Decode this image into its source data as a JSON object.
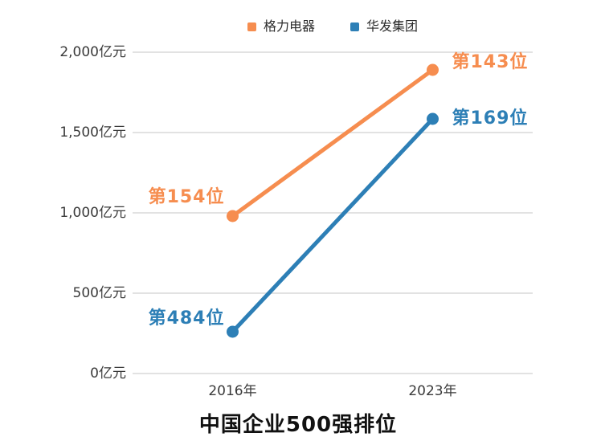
{
  "chart_data": {
    "type": "line",
    "categories": [
      "2016年",
      "2023年"
    ],
    "series": [
      {
        "name": "格力电器",
        "color": "#F68D4F",
        "values": [
          980,
          1890
        ],
        "point_labels": [
          "第154位",
          "第143位"
        ]
      },
      {
        "name": "华发集团",
        "color": "#2D7FB6",
        "values": [
          260,
          1585
        ],
        "point_labels": [
          "第484位",
          "第169位"
        ]
      }
    ],
    "title": "中国企业500强排位",
    "xlabel": "",
    "ylabel": "",
    "ylim": [
      0,
      2000
    ],
    "ytick_interval": 500,
    "yticks": [
      "0亿元",
      "500亿元",
      "1,000亿元",
      "1,500亿元",
      "2,000亿元"
    ],
    "unit": "亿元",
    "grid": true,
    "legend_position": "top",
    "marker": "circle",
    "legend_marker": "square"
  },
  "colors": {
    "background": "#ffffff",
    "gridline": "#e2e2e2",
    "axis_text": "#3a3a3a",
    "legend_text": "#2b2b2b",
    "title_text": "#111111"
  }
}
